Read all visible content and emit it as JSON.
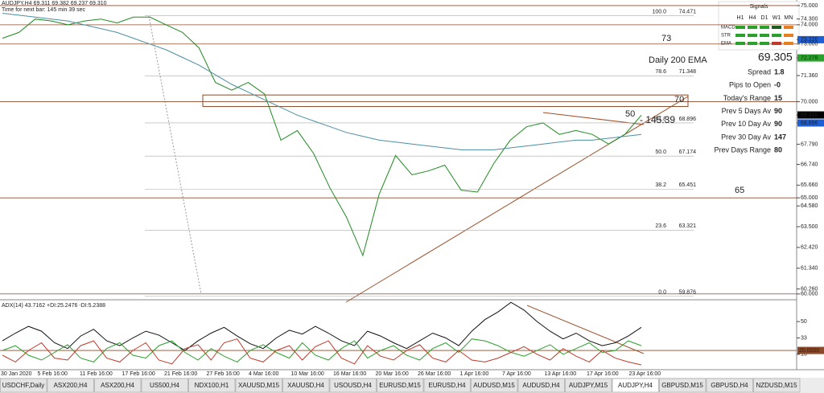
{
  "chart_data": [
    {
      "type": "line",
      "title": "AUDJPY,H4  69.311 69.382 69.237 69.310",
      "subtitle": "Time for next bar: 145 min 39 sec",
      "time_labels": [
        "30 Jan 2020",
        "5 Feb 16:00",
        "11 Feb 16:00",
        "17 Feb 16:00",
        "21 Feb 16:00",
        "27 Feb 16:00",
        "4 Mar 16:00",
        "10 Mar 16:00",
        "16 Mar 16:00",
        "20 Mar 16:00",
        "26 Mar 16:00",
        "1 Apr 16:00",
        "7 Apr 16:00",
        "13 Apr 16:00",
        "17 Apr 16:00",
        "23 Apr 16:00"
      ],
      "ylim": [
        59.74,
        75.29
      ],
      "yticks": [
        {
          "value": 75,
          "label": "75.000"
        },
        {
          "value": 74.3,
          "label": "74.300"
        },
        {
          "value": 74,
          "label": "74.000"
        },
        {
          "value": 73.226,
          "label": "73.226",
          "color": "#1f5fd6"
        },
        {
          "value": 73,
          "label": "73.000"
        },
        {
          "value": 72.278,
          "label": "72.278",
          "color": "#2ca02c"
        },
        {
          "value": 71.36,
          "label": "71.360"
        },
        {
          "value": 70,
          "label": "70.000"
        },
        {
          "value": 69.31,
          "label": "69.310",
          "color": "#000000"
        },
        {
          "value": 68.896,
          "label": "68.896",
          "color": "#1f5fd6"
        },
        {
          "value": 67.79,
          "label": "67.790"
        },
        {
          "value": 66.74,
          "label": "66.740"
        },
        {
          "value": 65.66,
          "label": "65.660"
        },
        {
          "value": 65,
          "label": "65.000"
        },
        {
          "value": 64.58,
          "label": "64.580"
        },
        {
          "value": 63.5,
          "label": "63.500"
        },
        {
          "value": 62.42,
          "label": "62.420"
        },
        {
          "value": 61.34,
          "label": "61.340"
        },
        {
          "value": 60.26,
          "label": "60.260"
        },
        {
          "value": 60,
          "label": "60.000"
        }
      ],
      "levels": [
        75,
        74,
        73,
        70,
        65,
        60
      ],
      "level_color": "#8b4a2b",
      "fib": [
        {
          "label": "100.0",
          "value": 74.471
        },
        {
          "label": "78.6",
          "value": 71.348
        },
        {
          "label": "61.8",
          "value": 68.896
        },
        {
          "label": "50.0",
          "value": 67.174
        },
        {
          "label": "38.2",
          "value": 65.451
        },
        {
          "label": "23.6",
          "value": 63.321
        },
        {
          "label": "0.0",
          "value": 59.876
        }
      ],
      "series": [
        {
          "color": "#1f8a1f",
          "values": [
            73.3,
            73.6,
            74.3,
            74.2,
            74.0,
            74.2,
            74.3,
            74.1,
            74.4,
            74.4,
            74.0,
            73.6,
            72.8,
            71.0,
            70.6,
            71.0,
            70.4,
            68.0,
            68.5,
            67.3,
            65.5,
            64.0,
            62.0,
            65.2,
            67.2,
            66.2,
            66.4,
            66.7,
            65.4,
            65.3,
            66.8,
            68.0,
            68.7,
            68.9,
            68.3,
            68.5,
            68.3,
            67.8,
            68.3,
            69.3
          ]
        },
        {
          "color": "#4a8fa0",
          "values": [
            74.6,
            74.5,
            74.4,
            74.3,
            74.2,
            74.0,
            73.8,
            73.6,
            73.3,
            73.0,
            72.7,
            72.3,
            71.9,
            71.4,
            70.9,
            70.5,
            70.1,
            69.7,
            69.3,
            69.0,
            68.7,
            68.4,
            68.2,
            68.0,
            67.9,
            67.8,
            67.7,
            67.6,
            67.5,
            67.5,
            67.5,
            67.6,
            67.7,
            67.8,
            67.9,
            68.0,
            68.0,
            68.1,
            68.2,
            68.3
          ]
        }
      ],
      "annotations": [
        "73",
        "Daily 200 EMA",
        "69.305",
        "70",
        "65",
        "50",
        "- 145.39"
      ]
    },
    {
      "type": "line",
      "title": "ADX(14) 43.7162 +DI:25.2476 -DI:5.2388",
      "ylim": [
        0,
        71
      ],
      "yticks": [
        16,
        33,
        50
      ],
      "level": {
        "value": 20,
        "label": "20.0000"
      },
      "series": [
        {
          "color": "#111111",
          "values": [
            30,
            38,
            45,
            40,
            28,
            22,
            35,
            42,
            30,
            25,
            33,
            40,
            36,
            28,
            20,
            30,
            38,
            44,
            35,
            27,
            22,
            33,
            41,
            37,
            45,
            38,
            30,
            25,
            40,
            35,
            28,
            22,
            30,
            38,
            33,
            25,
            40,
            52,
            60,
            70,
            62,
            50,
            40,
            32,
            38,
            30,
            25,
            28,
            35,
            44
          ]
        },
        {
          "color": "#2ca02c",
          "values": [
            20,
            25,
            15,
            10,
            18,
            26,
            12,
            8,
            22,
            28,
            15,
            12,
            25,
            30,
            18,
            10,
            22,
            14,
            8,
            20,
            26,
            18,
            12,
            28,
            15,
            10,
            22,
            30,
            12,
            20,
            25,
            15,
            10,
            22,
            28,
            18,
            32,
            30,
            25,
            18,
            14,
            20,
            26,
            16,
            22,
            28,
            18,
            20,
            30,
            25
          ]
        },
        {
          "color": "#c0392b",
          "values": [
            15,
            8,
            20,
            28,
            12,
            10,
            25,
            30,
            12,
            8,
            20,
            28,
            10,
            6,
            22,
            26,
            10,
            28,
            32,
            12,
            8,
            20,
            25,
            10,
            24,
            30,
            12,
            6,
            25,
            14,
            10,
            20,
            26,
            12,
            8,
            20,
            10,
            8,
            12,
            18,
            24,
            16,
            10,
            22,
            14,
            8,
            20,
            12,
            8,
            5
          ]
        }
      ]
    }
  ],
  "info_panel": {
    "title": "Signals",
    "columns": [
      "H1",
      "H4",
      "D1",
      "W1",
      "MN"
    ],
    "rows": [
      "MACD",
      "STR",
      "EMA"
    ],
    "stats": [
      [
        "Spread",
        "1.8"
      ],
      [
        "Pips to Open",
        "-0"
      ],
      [
        "Today's Range",
        "15"
      ],
      [
        "Prev 5 Days Av",
        "90"
      ],
      [
        "Prev 10 Day Av",
        "90"
      ],
      [
        "Prev 30 Day Av",
        "147"
      ],
      [
        "Prev Days Range",
        "80"
      ]
    ]
  },
  "tabs": [
    "USDCHF,Daily",
    "ASX200,H4",
    "ASX200,H4",
    "US500,H4",
    "NDX100,H1",
    "XAUUSD,M15",
    "XAUUSD,H4",
    "USOUSD,H4",
    "EURUSD,M15",
    "EURUSD,H4",
    "AUDUSD,M15",
    "AUDUSD,H4",
    "AUDJPY,M15",
    "AUDJPY,H4",
    "GBPUSD,M15",
    "GBPUSD,H4",
    "NZDUSD,M15"
  ],
  "active_tab": 13
}
